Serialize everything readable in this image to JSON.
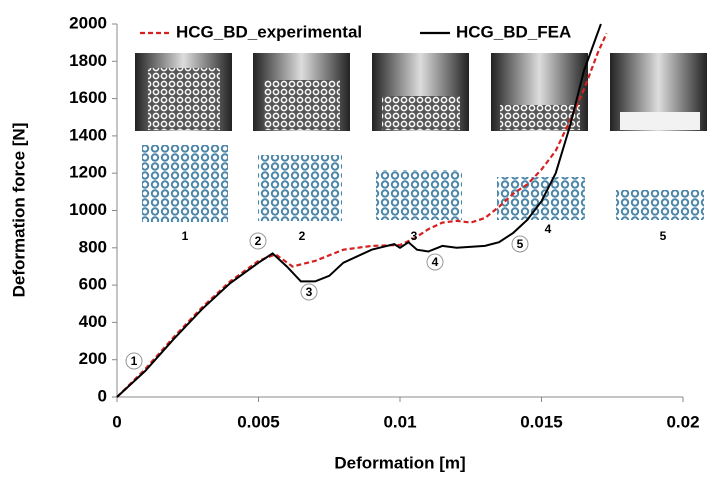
{
  "chart_data": {
    "type": "line",
    "x_label": "Deformation [m]",
    "y_label": "Deformation force [N]",
    "xlim": [
      0,
      0.02
    ],
    "xticks": [
      0,
      0.005,
      0.01,
      0.015,
      0.02
    ],
    "ylim": [
      0,
      2000
    ],
    "yticks": [
      0,
      200,
      400,
      600,
      800,
      1000,
      1200,
      1400,
      1600,
      1800,
      2000
    ],
    "series": [
      {
        "name": "HCG_BD_experimental",
        "color": "#d62020",
        "dashed": true,
        "x": [
          0,
          0.001,
          0.002,
          0.003,
          0.004,
          0.005,
          0.0056,
          0.0062,
          0.007,
          0.008,
          0.009,
          0.01,
          0.0105,
          0.011,
          0.0115,
          0.012,
          0.0125,
          0.013,
          0.0135,
          0.014,
          0.0145,
          0.015,
          0.0155,
          0.016,
          0.0165,
          0.017,
          0.0173
        ],
        "values": [
          0,
          150,
          320,
          480,
          620,
          730,
          765,
          700,
          730,
          790,
          810,
          815,
          850,
          900,
          935,
          945,
          935,
          960,
          1020,
          1090,
          1140,
          1220,
          1320,
          1480,
          1650,
          1850,
          1950
        ]
      },
      {
        "name": "HCG_BD_FEA",
        "color": "#000000",
        "dashed": false,
        "x": [
          0,
          0.001,
          0.002,
          0.003,
          0.004,
          0.005,
          0.0055,
          0.006,
          0.0065,
          0.007,
          0.0075,
          0.008,
          0.009,
          0.0098,
          0.01,
          0.0103,
          0.0106,
          0.011,
          0.0115,
          0.012,
          0.013,
          0.0135,
          0.014,
          0.0145,
          0.015,
          0.0155,
          0.016,
          0.0165,
          0.0171
        ],
        "values": [
          0,
          140,
          310,
          470,
          610,
          720,
          770,
          700,
          620,
          620,
          650,
          720,
          790,
          820,
          800,
          830,
          790,
          780,
          810,
          800,
          810,
          830,
          880,
          950,
          1050,
          1200,
          1450,
          1750,
          2000
        ]
      }
    ],
    "markers": [
      "1",
      "2",
      "3",
      "4",
      "5"
    ],
    "stage_labels": [
      "1",
      "2",
      "3",
      "4",
      "5"
    ],
    "grid": false
  }
}
